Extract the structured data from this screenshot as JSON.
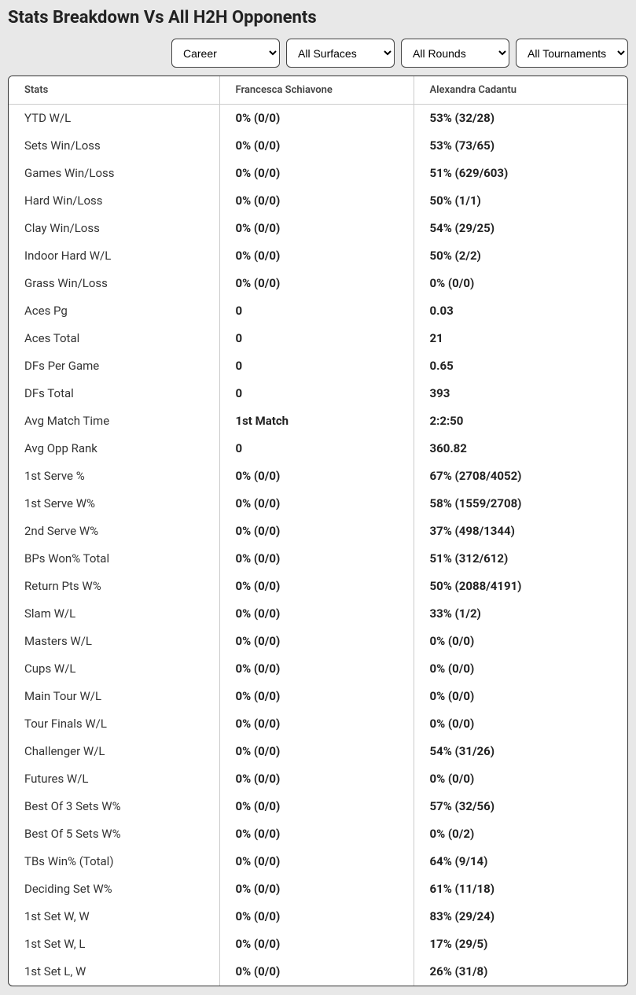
{
  "title": "Stats Breakdown Vs All H2H Opponents",
  "filters": {
    "period": "Career",
    "surface": "All Surfaces",
    "round": "All Rounds",
    "tournament": "All Tournaments"
  },
  "columns": {
    "stats": "Stats",
    "player1": "Francesca Schiavone",
    "player2": "Alexandra Cadantu"
  },
  "rows": [
    {
      "label": "YTD W/L",
      "p1": "0% (0/0)",
      "p2": "53% (32/28)"
    },
    {
      "label": "Sets Win/Loss",
      "p1": "0% (0/0)",
      "p2": "53% (73/65)"
    },
    {
      "label": "Games Win/Loss",
      "p1": "0% (0/0)",
      "p2": "51% (629/603)"
    },
    {
      "label": "Hard Win/Loss",
      "p1": "0% (0/0)",
      "p2": "50% (1/1)"
    },
    {
      "label": "Clay Win/Loss",
      "p1": "0% (0/0)",
      "p2": "54% (29/25)"
    },
    {
      "label": "Indoor Hard W/L",
      "p1": "0% (0/0)",
      "p2": "50% (2/2)"
    },
    {
      "label": "Grass Win/Loss",
      "p1": "0% (0/0)",
      "p2": "0% (0/0)"
    },
    {
      "label": "Aces Pg",
      "p1": "0",
      "p2": "0.03"
    },
    {
      "label": "Aces Total",
      "p1": "0",
      "p2": "21"
    },
    {
      "label": "DFs Per Game",
      "p1": "0",
      "p2": "0.65"
    },
    {
      "label": "DFs Total",
      "p1": "0",
      "p2": "393"
    },
    {
      "label": "Avg Match Time",
      "p1": "1st Match",
      "p2": "2:2:50"
    },
    {
      "label": "Avg Opp Rank",
      "p1": "0",
      "p2": "360.82"
    },
    {
      "label": "1st Serve %",
      "p1": "0% (0/0)",
      "p2": "67% (2708/4052)"
    },
    {
      "label": "1st Serve W%",
      "p1": "0% (0/0)",
      "p2": "58% (1559/2708)"
    },
    {
      "label": "2nd Serve W%",
      "p1": "0% (0/0)",
      "p2": "37% (498/1344)"
    },
    {
      "label": "BPs Won% Total",
      "p1": "0% (0/0)",
      "p2": "51% (312/612)"
    },
    {
      "label": "Return Pts W%",
      "p1": "0% (0/0)",
      "p2": "50% (2088/4191)"
    },
    {
      "label": "Slam W/L",
      "p1": "0% (0/0)",
      "p2": "33% (1/2)"
    },
    {
      "label": "Masters W/L",
      "p1": "0% (0/0)",
      "p2": "0% (0/0)"
    },
    {
      "label": "Cups W/L",
      "p1": "0% (0/0)",
      "p2": "0% (0/0)"
    },
    {
      "label": "Main Tour W/L",
      "p1": "0% (0/0)",
      "p2": "0% (0/0)"
    },
    {
      "label": "Tour Finals W/L",
      "p1": "0% (0/0)",
      "p2": "0% (0/0)"
    },
    {
      "label": "Challenger W/L",
      "p1": "0% (0/0)",
      "p2": "54% (31/26)"
    },
    {
      "label": "Futures W/L",
      "p1": "0% (0/0)",
      "p2": "0% (0/0)"
    },
    {
      "label": "Best Of 3 Sets W%",
      "p1": "0% (0/0)",
      "p2": "57% (32/56)"
    },
    {
      "label": "Best Of 5 Sets W%",
      "p1": "0% (0/0)",
      "p2": "0% (0/2)"
    },
    {
      "label": "TBs Win% (Total)",
      "p1": "0% (0/0)",
      "p2": "64% (9/14)"
    },
    {
      "label": "Deciding Set W%",
      "p1": "0% (0/0)",
      "p2": "61% (11/18)"
    },
    {
      "label": "1st Set W, W",
      "p1": "0% (0/0)",
      "p2": "83% (29/24)"
    },
    {
      "label": "1st Set W, L",
      "p1": "0% (0/0)",
      "p2": "17% (29/5)"
    },
    {
      "label": "1st Set L, W",
      "p1": "0% (0/0)",
      "p2": "26% (31/8)"
    }
  ]
}
